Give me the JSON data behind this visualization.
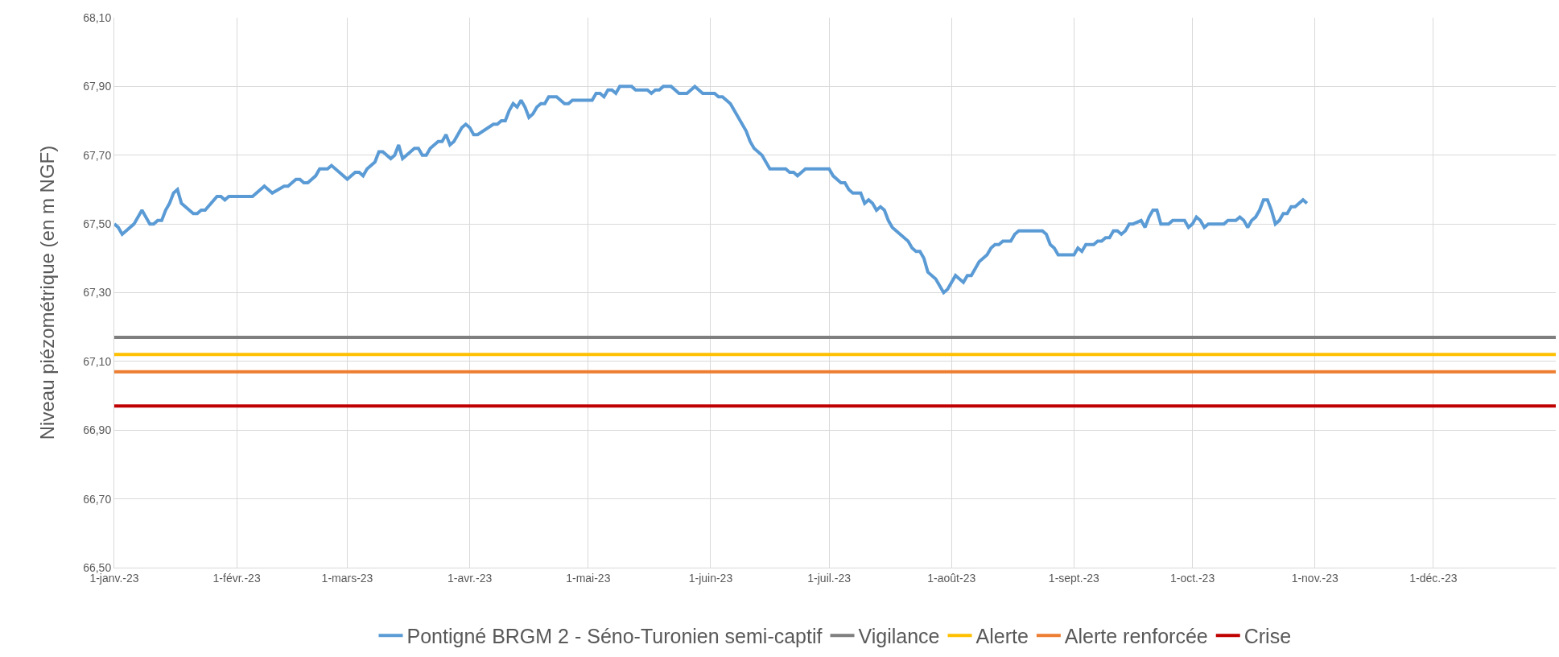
{
  "chart_data": {
    "type": "line",
    "ylabel": "Niveau piézométrique (en m NGF)",
    "x": [
      "2023-01-01",
      "2023-01-02",
      "2023-01-03",
      "2023-01-06",
      "2023-01-08",
      "2023-01-10",
      "2023-01-11",
      "2023-01-12",
      "2023-01-13",
      "2023-01-14",
      "2023-01-15",
      "2023-01-16",
      "2023-01-17",
      "2023-01-18",
      "2023-01-21",
      "2023-01-22",
      "2023-01-23",
      "2023-01-24",
      "2023-01-27",
      "2023-01-28",
      "2023-01-29",
      "2023-01-30",
      "2023-02-05",
      "2023-02-08",
      "2023-02-10",
      "2023-02-13",
      "2023-02-14",
      "2023-02-16",
      "2023-02-17",
      "2023-02-18",
      "2023-02-19",
      "2023-02-21",
      "2023-02-22",
      "2023-02-24",
      "2023-02-25",
      "2023-03-01",
      "2023-03-03",
      "2023-03-04",
      "2023-03-05",
      "2023-03-06",
      "2023-03-08",
      "2023-03-09",
      "2023-03-10",
      "2023-03-12",
      "2023-03-13",
      "2023-03-14",
      "2023-03-15",
      "2023-03-17",
      "2023-03-18",
      "2023-03-19",
      "2023-03-20",
      "2023-03-21",
      "2023-03-22",
      "2023-03-24",
      "2023-03-25",
      "2023-03-26",
      "2023-03-27",
      "2023-03-28",
      "2023-03-30",
      "2023-03-31",
      "2023-04-01",
      "2023-04-02",
      "2023-04-03",
      "2023-04-07",
      "2023-04-08",
      "2023-04-09",
      "2023-04-10",
      "2023-04-11",
      "2023-04-12",
      "2023-04-13",
      "2023-04-14",
      "2023-04-15",
      "2023-04-16",
      "2023-04-17",
      "2023-04-18",
      "2023-04-19",
      "2023-04-20",
      "2023-04-21",
      "2023-04-23",
      "2023-04-25",
      "2023-04-26",
      "2023-04-27",
      "2023-05-02",
      "2023-05-03",
      "2023-05-04",
      "2023-05-05",
      "2023-05-06",
      "2023-05-07",
      "2023-05-08",
      "2023-05-09",
      "2023-05-12",
      "2023-05-13",
      "2023-05-16",
      "2023-05-17",
      "2023-05-18",
      "2023-05-19",
      "2023-05-20",
      "2023-05-22",
      "2023-05-24",
      "2023-05-26",
      "2023-05-28",
      "2023-05-30",
      "2023-06-02",
      "2023-06-03",
      "2023-06-04",
      "2023-06-06",
      "2023-06-10",
      "2023-06-11",
      "2023-06-12",
      "2023-06-14",
      "2023-06-16",
      "2023-06-20",
      "2023-06-21",
      "2023-06-22",
      "2023-06-23",
      "2023-06-25",
      "2023-07-01",
      "2023-07-02",
      "2023-07-04",
      "2023-07-05",
      "2023-07-06",
      "2023-07-07",
      "2023-07-09",
      "2023-07-10",
      "2023-07-11",
      "2023-07-12",
      "2023-07-13",
      "2023-07-14",
      "2023-07-15",
      "2023-07-16",
      "2023-07-17",
      "2023-07-21",
      "2023-07-22",
      "2023-07-23",
      "2023-07-24",
      "2023-07-25",
      "2023-07-26",
      "2023-07-28",
      "2023-07-30",
      "2023-07-31",
      "2023-08-02",
      "2023-08-04",
      "2023-08-05",
      "2023-08-06",
      "2023-08-08",
      "2023-08-10",
      "2023-08-11",
      "2023-08-12",
      "2023-08-13",
      "2023-08-14",
      "2023-08-16",
      "2023-08-17",
      "2023-08-18",
      "2023-08-24",
      "2023-08-25",
      "2023-08-26",
      "2023-08-27",
      "2023-08-28",
      "2023-09-01",
      "2023-09-02",
      "2023-09-03",
      "2023-09-04",
      "2023-09-06",
      "2023-09-07",
      "2023-09-08",
      "2023-09-09",
      "2023-09-10",
      "2023-09-11",
      "2023-09-12",
      "2023-09-13",
      "2023-09-14",
      "2023-09-15",
      "2023-09-16",
      "2023-09-18",
      "2023-09-19",
      "2023-09-20",
      "2023-09-21",
      "2023-09-22",
      "2023-09-23",
      "2023-09-25",
      "2023-09-26",
      "2023-09-29",
      "2023-09-30",
      "2023-10-01",
      "2023-10-02",
      "2023-10-03",
      "2023-10-04",
      "2023-10-05",
      "2023-10-09",
      "2023-10-10",
      "2023-10-12",
      "2023-10-13",
      "2023-10-14",
      "2023-10-15",
      "2023-10-16",
      "2023-10-17",
      "2023-10-18",
      "2023-10-19",
      "2023-10-20",
      "2023-10-21",
      "2023-10-22",
      "2023-10-23",
      "2023-10-24",
      "2023-10-25",
      "2023-10-26",
      "2023-10-27",
      "2023-10-29",
      "2023-10-30"
    ],
    "series": [
      {
        "name": "Pontigné BRGM 2 - Séno-Turonien semi-captif",
        "color": "#5b9bd5",
        "values": [
          67.5,
          67.49,
          67.47,
          67.5,
          67.54,
          67.5,
          67.5,
          67.51,
          67.51,
          67.54,
          67.56,
          67.59,
          67.6,
          67.56,
          67.53,
          67.53,
          67.54,
          67.54,
          67.58,
          67.58,
          67.57,
          67.58,
          67.58,
          67.61,
          67.59,
          67.61,
          67.61,
          67.63,
          67.63,
          67.62,
          67.62,
          67.64,
          67.66,
          67.66,
          67.67,
          67.63,
          67.65,
          67.65,
          67.64,
          67.66,
          67.68,
          67.71,
          67.71,
          67.69,
          67.7,
          67.73,
          67.69,
          67.71,
          67.72,
          67.72,
          67.7,
          67.7,
          67.72,
          67.74,
          67.74,
          67.76,
          67.73,
          67.74,
          67.78,
          67.79,
          67.78,
          67.76,
          67.76,
          67.79,
          67.79,
          67.8,
          67.8,
          67.83,
          67.85,
          67.84,
          67.86,
          67.84,
          67.81,
          67.82,
          67.84,
          67.85,
          67.85,
          67.87,
          67.87,
          67.85,
          67.85,
          67.86,
          67.86,
          67.88,
          67.88,
          67.87,
          67.89,
          67.89,
          67.88,
          67.9,
          67.9,
          67.89,
          67.89,
          67.88,
          67.89,
          67.89,
          67.9,
          67.9,
          67.88,
          67.88,
          67.9,
          67.88,
          67.88,
          67.87,
          67.87,
          67.85,
          67.77,
          67.74,
          67.72,
          67.7,
          67.66,
          67.66,
          67.65,
          67.65,
          67.64,
          67.66,
          67.66,
          67.64,
          67.62,
          67.62,
          67.6,
          67.59,
          67.59,
          67.56,
          67.57,
          67.56,
          67.54,
          67.55,
          67.54,
          67.51,
          67.49,
          67.45,
          67.43,
          67.42,
          67.42,
          67.4,
          67.36,
          67.34,
          67.3,
          67.31,
          67.35,
          67.33,
          67.35,
          67.35,
          67.39,
          67.41,
          67.43,
          67.44,
          67.44,
          67.45,
          67.45,
          67.47,
          67.48,
          67.48,
          67.47,
          67.44,
          67.43,
          67.41,
          67.41,
          67.43,
          67.42,
          67.44,
          67.44,
          67.45,
          67.45,
          67.46,
          67.46,
          67.48,
          67.48,
          67.47,
          67.48,
          67.5,
          67.5,
          67.51,
          67.49,
          67.52,
          67.54,
          67.54,
          67.5,
          67.5,
          67.51,
          67.51,
          67.49,
          67.5,
          67.52,
          67.51,
          67.49,
          67.5,
          67.5,
          67.51,
          67.51,
          67.52,
          67.51,
          67.49,
          67.51,
          67.52,
          67.54,
          67.57,
          67.57,
          67.54,
          67.5,
          67.51,
          67.53,
          67.53,
          67.55,
          67.55,
          67.57,
          67.56
        ]
      },
      {
        "name": "Vigilance",
        "color": "#7f7f7f",
        "x": [
          "2023-01-01",
          "2024-01-01"
        ],
        "values": [
          67.17,
          67.17
        ]
      },
      {
        "name": "Alerte",
        "color": "#ffc000",
        "x": [
          "2023-01-01",
          "2024-01-01"
        ],
        "values": [
          67.12,
          67.12
        ]
      },
      {
        "name": "Alerte renforcée",
        "color": "#ed7d31",
        "x": [
          "2023-01-01",
          "2024-01-01"
        ],
        "values": [
          67.07,
          67.07
        ]
      },
      {
        "name": "Crise",
        "color": "#c00000",
        "x": [
          "2023-01-01",
          "2024-01-01"
        ],
        "values": [
          66.97,
          66.97
        ]
      }
    ],
    "xlim": [
      "2023-01-01",
      "2024-01-01"
    ],
    "xticks": [
      {
        "value": "2023-01-01",
        "label": "1-janv.-23"
      },
      {
        "value": "2023-02-01",
        "label": "1-févr.-23"
      },
      {
        "value": "2023-03-01",
        "label": "1-mars-23"
      },
      {
        "value": "2023-04-01",
        "label": "1-avr.-23"
      },
      {
        "value": "2023-05-01",
        "label": "1-mai-23"
      },
      {
        "value": "2023-06-01",
        "label": "1-juin-23"
      },
      {
        "value": "2023-07-01",
        "label": "1-juil.-23"
      },
      {
        "value": "2023-08-01",
        "label": "1-août-23"
      },
      {
        "value": "2023-09-01",
        "label": "1-sept.-23"
      },
      {
        "value": "2023-10-01",
        "label": "1-oct.-23"
      },
      {
        "value": "2023-11-01",
        "label": "1-nov.-23"
      },
      {
        "value": "2023-12-01",
        "label": "1-déc.-23"
      }
    ],
    "ylim": [
      66.5,
      68.1
    ],
    "yticks": [
      {
        "value": 66.5,
        "label": "66,50"
      },
      {
        "value": 66.7,
        "label": "66,70"
      },
      {
        "value": 66.9,
        "label": "66,90"
      },
      {
        "value": 67.1,
        "label": "67,10"
      },
      {
        "value": 67.3,
        "label": "67,30"
      },
      {
        "value": 67.5,
        "label": "67,50"
      },
      {
        "value": 67.7,
        "label": "67,70"
      },
      {
        "value": 67.9,
        "label": "67,90"
      },
      {
        "value": 68.1,
        "label": "68,10"
      }
    ],
    "grid": true,
    "legend": "bottom",
    "marker": "none",
    "line_style": "solid"
  }
}
